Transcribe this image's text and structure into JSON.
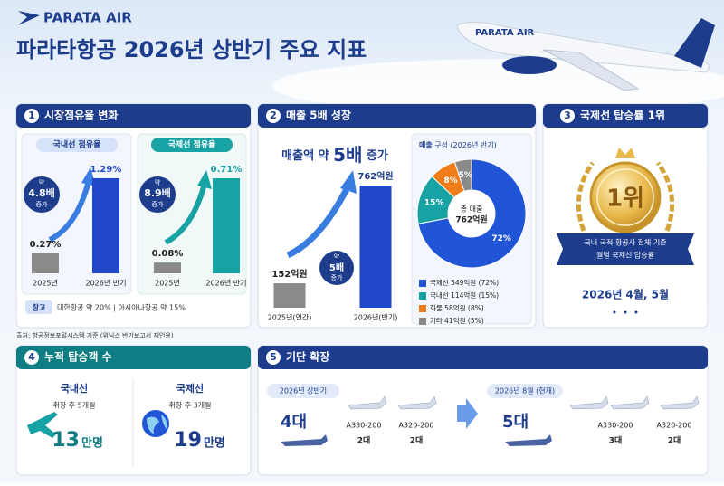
{
  "header": {
    "brand": "PARATA AIR",
    "title": "파라타항공 2026년 상반기 주요 지표"
  },
  "panel1": {
    "number": "1",
    "title": "시장점유율 변화",
    "charts": [
      {
        "tag": "국내선 점유율",
        "badge": [
          "약",
          "4.8배",
          "증가"
        ],
        "categories": [
          "2025년",
          "2026년 반기"
        ],
        "values": [
          0.27,
          1.29
        ],
        "value_labels": [
          "0.27%",
          "1.29%"
        ],
        "colors": [
          "#8a8a8a",
          "#1f47c8"
        ]
      },
      {
        "tag": "국제선 점유율",
        "badge": [
          "약",
          "8.9배",
          "증가"
        ],
        "categories": [
          "2025년",
          "2026년 반기"
        ],
        "values": [
          0.08,
          0.71
        ],
        "value_labels": [
          "0.08%",
          "0.71%"
        ],
        "colors": [
          "#8a8a8a",
          "#17a2a4"
        ]
      }
    ],
    "note_tag": "참고",
    "note": "대한항공 약 20%  |  아시아나항공 약 15%"
  },
  "source": "출처: 항공정보포털시스템 기준 (위닉스 반기보고서 재인용)",
  "panel2": {
    "number": "2",
    "title": "매출 5배 성장",
    "headline": [
      "매출액 약 ",
      "5배",
      " 증가"
    ],
    "badge": [
      "약",
      "5배",
      "증가"
    ],
    "categories": [
      "2025년(연간)",
      "2026년(반기)"
    ],
    "values": [
      152,
      762
    ],
    "value_labels": [
      "152억원",
      "762억원"
    ],
    "colors": [
      "#8a8a8a",
      "#1f47c8"
    ],
    "donut": {
      "title": [
        "매출",
        " 구성 (2026년 반기)"
      ],
      "center": [
        "총 매출",
        "762억원"
      ],
      "values": [
        72,
        15,
        8,
        5
      ],
      "value_labels": [
        "72%",
        "15%",
        "8%",
        "5%"
      ],
      "colors": [
        "#1f55d6",
        "#17a2a4",
        "#f07d1a",
        "#8a8a8a"
      ],
      "legend": [
        "국제선 549억원 (72%)",
        "국내선 114억원 (15%)",
        "화물 58억원 (8%)",
        "기타 41억원 (5%)"
      ]
    }
  },
  "panel3": {
    "number": "3",
    "title": "국제선 탑승률 1위",
    "medal": "1위",
    "ribbon": [
      "국내 국적 항공사 전체 기준",
      "월별 국제선 탑승률"
    ],
    "date": "2026년 4월, 5월"
  },
  "panel4": {
    "number": "4",
    "title": "누적 탑승객 수",
    "items": [
      {
        "label": "국내선",
        "sub": "취항 후 5개월",
        "value": "13",
        "unit": "만명"
      },
      {
        "label": "국제선",
        "sub": "취항 후 3개월",
        "value": "19",
        "unit": "만명"
      }
    ]
  },
  "panel5": {
    "number": "5",
    "title": "기단 확장",
    "groups": [
      {
        "period": "2026년 상반기",
        "total": "4대",
        "fleet": [
          {
            "model": "A330-200",
            "count": "2대"
          },
          {
            "model": "A320-200",
            "count": "2대"
          }
        ]
      },
      {
        "period": "2026년 8월 (현재)",
        "total": "5대",
        "fleet": [
          {
            "model": "A330-200",
            "count": "3대"
          },
          {
            "model": "A320-200",
            "count": "2대"
          }
        ]
      }
    ]
  }
}
